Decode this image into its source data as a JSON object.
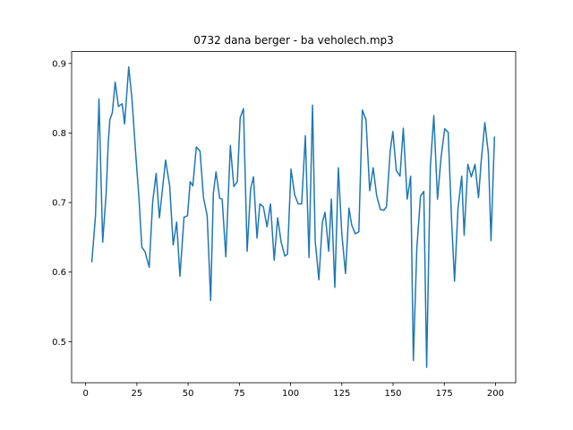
{
  "chart_data": {
    "type": "line",
    "title": "0732 dana berger - ba veholech.mp3",
    "x": [
      3,
      4.8,
      6.5,
      8.3,
      10,
      11,
      11.8,
      13,
      14.4,
      16,
      17.8,
      19,
      21,
      22.6,
      24.4,
      26,
      27.4,
      29,
      31,
      32.7,
      34.4,
      36,
      37.5,
      39,
      41,
      42.7,
      44.4,
      46,
      48,
      49.7,
      51,
      52.3,
      54,
      55.8,
      57.5,
      59.3,
      61,
      62.3,
      63.6,
      65.4,
      66.6,
      68.4,
      70.6,
      72.3,
      74,
      75.4,
      77,
      78.8,
      80.5,
      81.9,
      83.6,
      85,
      86.7,
      88.5,
      90.2,
      92,
      93.7,
      95.4,
      97.2,
      98.5,
      100.2,
      102,
      103.7,
      105.4,
      107.2,
      109,
      110.7,
      112,
      113.8,
      115.5,
      116.8,
      118.6,
      119.9,
      121.6,
      123.3,
      125,
      126.8,
      128.5,
      129.8,
      131.6,
      133.3,
      135,
      136.8,
      138.6,
      140.3,
      142,
      143.8,
      145.5,
      146.8,
      148.6,
      149.9,
      151.6,
      153.4,
      155,
      156.9,
      158.6,
      159.9,
      161.6,
      163.4,
      165,
      166.4,
      168.2,
      169.9,
      171.7,
      173.4,
      175.2,
      176.9,
      178.6,
      180,
      181.7,
      183.5,
      184.7,
      186.5,
      188.2,
      190,
      191.7,
      193,
      194.8,
      196.5,
      197.8,
      199.5
    ],
    "series": [
      {
        "color": "#1f77b4",
        "values": [
          0.614,
          0.681,
          0.849,
          0.643,
          0.713,
          0.785,
          0.819,
          0.829,
          0.873,
          0.838,
          0.842,
          0.813,
          0.895,
          0.849,
          0.771,
          0.707,
          0.636,
          0.629,
          0.607,
          0.701,
          0.742,
          0.678,
          0.72,
          0.761,
          0.724,
          0.639,
          0.672,
          0.594,
          0.679,
          0.681,
          0.73,
          0.724,
          0.78,
          0.774,
          0.707,
          0.681,
          0.559,
          0.713,
          0.744,
          0.706,
          0.705,
          0.622,
          0.782,
          0.723,
          0.73,
          0.822,
          0.835,
          0.63,
          0.72,
          0.737,
          0.649,
          0.698,
          0.694,
          0.665,
          0.698,
          0.617,
          0.678,
          0.643,
          0.623,
          0.626,
          0.748,
          0.711,
          0.698,
          0.698,
          0.796,
          0.621,
          0.84,
          0.645,
          0.589,
          0.671,
          0.686,
          0.63,
          0.705,
          0.578,
          0.75,
          0.655,
          0.598,
          0.692,
          0.668,
          0.655,
          0.658,
          0.833,
          0.819,
          0.717,
          0.75,
          0.71,
          0.69,
          0.689,
          0.694,
          0.774,
          0.802,
          0.746,
          0.738,
          0.807,
          0.705,
          0.738,
          0.473,
          0.634,
          0.709,
          0.716,
          0.463,
          0.752,
          0.825,
          0.705,
          0.764,
          0.806,
          0.801,
          0.672,
          0.587,
          0.692,
          0.738,
          0.653,
          0.755,
          0.737,
          0.755,
          0.707,
          0.759,
          0.815,
          0.771,
          0.645,
          0.795
        ]
      }
    ],
    "xlim": [
      -6.85,
      209.85
    ],
    "xticks": [
      0,
      25,
      50,
      75,
      100,
      125,
      150,
      175,
      200
    ],
    "ylim": [
      0.441,
      0.917
    ],
    "yticks": [
      0.5,
      0.6,
      0.7,
      0.8,
      0.9
    ]
  }
}
